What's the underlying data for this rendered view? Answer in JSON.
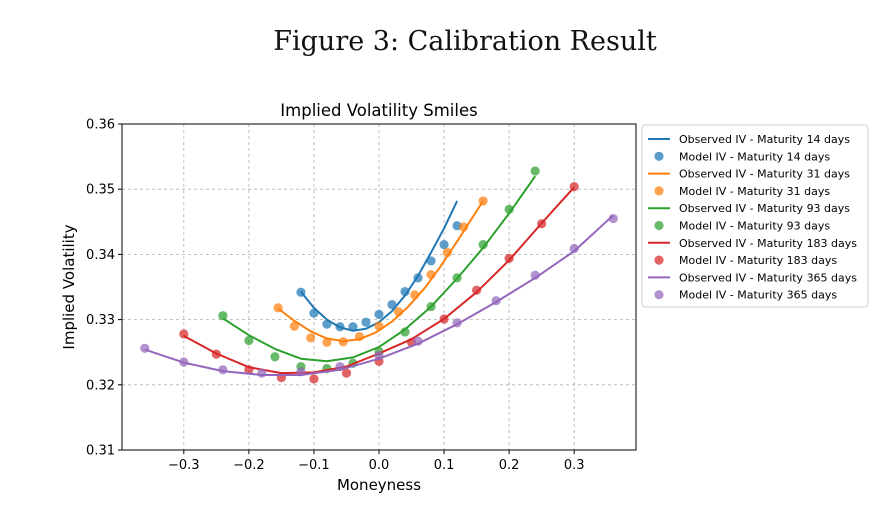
{
  "figure_caption": "Figure 3: Calibration Result",
  "chart_data": {
    "type": "line",
    "title": "Implied Volatility Smiles",
    "xlabel": "Moneyness",
    "ylabel": "Implied Volatility",
    "xlim": [
      -0.395,
      0.395
    ],
    "ylim": [
      0.31,
      0.36
    ],
    "xticks": [
      -0.3,
      -0.2,
      -0.1,
      0.0,
      0.1,
      0.2,
      0.3
    ],
    "xtick_labels": [
      "−0.3",
      "−0.2",
      "−0.1",
      "0.0",
      "0.1",
      "0.2",
      "0.3"
    ],
    "yticks": [
      0.31,
      0.32,
      0.33,
      0.34,
      0.35,
      0.36
    ],
    "ytick_labels": [
      "0.31",
      "0.32",
      "0.33",
      "0.34",
      "0.35",
      "0.36"
    ],
    "grid": true,
    "legend_position": "right-outside",
    "series": [
      {
        "color": "#1f77b4",
        "line_label": "Observed IV - Maturity 14 days",
        "marker_label": "Model IV - Maturity 14 days",
        "observed": {
          "x": [
            -0.12,
            -0.1,
            -0.08,
            -0.06,
            -0.04,
            -0.02,
            0.0,
            0.02,
            0.04,
            0.06,
            0.08,
            0.1,
            0.12
          ],
          "y": [
            0.3343,
            0.3318,
            0.33,
            0.3288,
            0.3283,
            0.3286,
            0.3296,
            0.3313,
            0.3337,
            0.3367,
            0.3403,
            0.344,
            0.3482
          ]
        },
        "model": {
          "x": [
            -0.12,
            -0.1,
            -0.08,
            -0.06,
            -0.04,
            -0.02,
            0.0,
            0.02,
            0.04,
            0.06,
            0.08,
            0.1,
            0.12
          ],
          "y": [
            0.3342,
            0.331,
            0.3293,
            0.3289,
            0.3289,
            0.3296,
            0.3308,
            0.3323,
            0.3343,
            0.3364,
            0.339,
            0.3415,
            0.3444
          ]
        }
      },
      {
        "color": "#ff7f0e",
        "line_label": "Observed IV - Maturity 31 days",
        "marker_label": "Model IV - Maturity 31 days",
        "observed": {
          "x": [
            -0.155,
            -0.13,
            -0.105,
            -0.08,
            -0.055,
            -0.03,
            -0.005,
            0.02,
            0.045,
            0.07,
            0.095,
            0.12,
            0.16
          ],
          "y": [
            0.3317,
            0.3298,
            0.3282,
            0.3271,
            0.3267,
            0.327,
            0.328,
            0.3297,
            0.332,
            0.3348,
            0.3382,
            0.342,
            0.3482
          ]
        },
        "model": {
          "x": [
            -0.155,
            -0.13,
            -0.105,
            -0.08,
            -0.055,
            -0.03,
            0.0,
            0.03,
            0.055,
            0.08,
            0.105,
            0.13,
            0.16
          ],
          "y": [
            0.3318,
            0.329,
            0.3272,
            0.3265,
            0.3266,
            0.3274,
            0.329,
            0.3312,
            0.3338,
            0.3369,
            0.3403,
            0.3442,
            0.3482
          ]
        }
      },
      {
        "color": "#2ca02c",
        "line_label": "Observed IV - Maturity 93 days",
        "marker_label": "Model IV - Maturity 93 days",
        "observed": {
          "x": [
            -0.24,
            -0.2,
            -0.16,
            -0.12,
            -0.08,
            -0.04,
            0.0,
            0.04,
            0.08,
            0.12,
            0.16,
            0.2,
            0.24
          ],
          "y": [
            0.3302,
            0.3276,
            0.3255,
            0.324,
            0.3236,
            0.3242,
            0.3258,
            0.3285,
            0.332,
            0.3363,
            0.341,
            0.3463,
            0.352
          ]
        },
        "model": {
          "x": [
            -0.24,
            -0.2,
            -0.16,
            -0.12,
            -0.08,
            -0.04,
            0.0,
            0.04,
            0.08,
            0.12,
            0.16,
            0.2,
            0.24
          ],
          "y": [
            0.3306,
            0.3268,
            0.3243,
            0.3228,
            0.3225,
            0.3233,
            0.3251,
            0.3281,
            0.332,
            0.3364,
            0.3415,
            0.3469,
            0.3528
          ]
        }
      },
      {
        "color": "#d62728",
        "line_label": "Observed IV - Maturity 183 days",
        "marker_label": "Model IV - Maturity 183 days",
        "observed": {
          "x": [
            -0.3,
            -0.25,
            -0.2,
            -0.15,
            -0.1,
            -0.05,
            0.0,
            0.05,
            0.1,
            0.15,
            0.2,
            0.25,
            0.3
          ],
          "y": [
            0.3275,
            0.3248,
            0.3227,
            0.3218,
            0.3219,
            0.3228,
            0.3248,
            0.327,
            0.3301,
            0.3342,
            0.3391,
            0.3448,
            0.3503
          ]
        },
        "model": {
          "x": [
            -0.3,
            -0.25,
            -0.2,
            -0.15,
            -0.1,
            -0.05,
            0.0,
            0.05,
            0.1,
            0.15,
            0.2,
            0.25,
            0.3
          ],
          "y": [
            0.3278,
            0.3247,
            0.3223,
            0.3211,
            0.3209,
            0.3218,
            0.3236,
            0.3265,
            0.3301,
            0.3345,
            0.3394,
            0.3447,
            0.3504
          ]
        }
      },
      {
        "color": "#9467bd",
        "line_label": "Observed IV - Maturity 365 days",
        "marker_label": "Model IV - Maturity 365 days",
        "observed": {
          "x": [
            -0.36,
            -0.3,
            -0.24,
            -0.18,
            -0.12,
            -0.06,
            0.0,
            0.06,
            0.12,
            0.18,
            0.24,
            0.3,
            0.36
          ],
          "y": [
            0.3254,
            0.3234,
            0.3221,
            0.3215,
            0.3215,
            0.3223,
            0.324,
            0.3263,
            0.3293,
            0.3327,
            0.3364,
            0.3405,
            0.346
          ]
        },
        "model": {
          "x": [
            -0.36,
            -0.3,
            -0.24,
            -0.18,
            -0.12,
            -0.06,
            0.0,
            0.06,
            0.12,
            0.18,
            0.24,
            0.3,
            0.36
          ],
          "y": [
            0.3256,
            0.3235,
            0.3223,
            0.3218,
            0.322,
            0.3228,
            0.3245,
            0.3267,
            0.3295,
            0.3329,
            0.3368,
            0.3409,
            0.3455
          ]
        }
      }
    ]
  }
}
